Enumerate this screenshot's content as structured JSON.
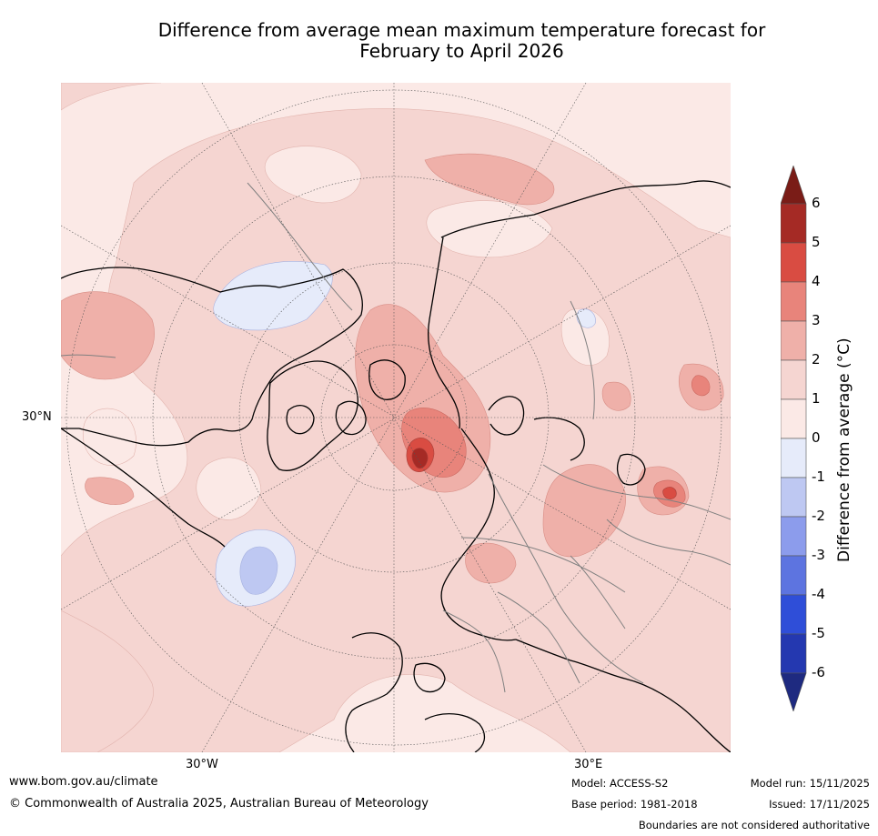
{
  "title": {
    "line1": "Difference from average mean maximum temperature forecast for",
    "line2": "February to April 2026"
  },
  "map": {
    "lat_label": "30°N",
    "lon_labels": [
      "30°W",
      "30°E"
    ]
  },
  "colorbar": {
    "label": "Difference from average (°C)",
    "ticks": [
      "6",
      "5",
      "4",
      "3",
      "2",
      "1",
      "0",
      "-1",
      "-2",
      "-3",
      "-4",
      "-5",
      "-6"
    ],
    "colors": {
      "over": "#7a1c17",
      "5_6": "#a52a25",
      "4_5": "#d94c42",
      "3_4": "#e8847b",
      "2_3": "#efb0a9",
      "1_2": "#f5d5d1",
      "0_1": "#fbe9e6",
      "m1_0": "#e6ebfa",
      "m2_m1": "#bec8f2",
      "m3_m2": "#8c9cec",
      "m4_m3": "#5d74e0",
      "m5_m4": "#2f4ed8",
      "m6_m5": "#2438b0",
      "under": "#1e2a80"
    }
  },
  "footer": {
    "website": "www.bom.gov.au/climate",
    "copyright": "© Commonwealth of Australia 2025, Australian Bureau of Meteorology",
    "model": "Model: ACCESS-S2",
    "base_period": "Base period: 1981-2018",
    "model_run": "Model run: 15/11/2025",
    "issued": "Issued: 17/11/2025",
    "disclaimer": "Boundaries are not considered authoritative"
  }
}
